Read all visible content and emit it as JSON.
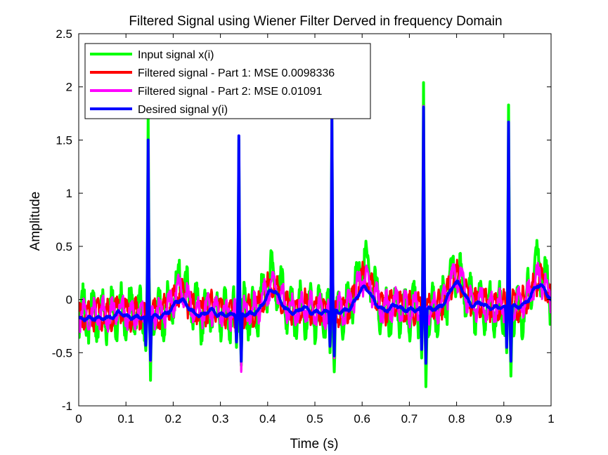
{
  "chart_data": {
    "type": "line",
    "title": "Filtered Signal using Wiener Filter Derved in frequency Domain",
    "xlabel": "Time (s)",
    "ylabel": "Amplitude",
    "xlim": [
      0,
      1
    ],
    "ylim": [
      -1,
      2.5
    ],
    "xticks": [
      "0",
      "0.1",
      "0.2",
      "0.3",
      "0.4",
      "0.5",
      "0.6",
      "0.7",
      "0.8",
      "0.9",
      "1"
    ],
    "yticks": [
      "-1",
      "-0.5",
      "0",
      "0.5",
      "1",
      "1.5",
      "2",
      "2.5"
    ],
    "grid": false,
    "legend_position": "top-left",
    "series": [
      {
        "name": "Input signal x(i)",
        "color": "#00ff00",
        "amplitude": 0.26,
        "r_peaks": [
          [
            0.147,
            1.72
          ],
          [
            0.339,
            1.5
          ],
          [
            0.536,
            1.75
          ],
          [
            0.73,
            2.04
          ],
          [
            0.91,
            1.83
          ]
        ],
        "q_dips": [
          [
            0.142,
            -0.48
          ],
          [
            0.334,
            -0.45
          ],
          [
            0.532,
            -0.5
          ],
          [
            0.726,
            -0.55
          ],
          [
            0.906,
            -0.5
          ]
        ],
        "s_dips": [
          [
            0.152,
            -0.76
          ],
          [
            0.344,
            -0.62
          ],
          [
            0.541,
            -0.68
          ],
          [
            0.735,
            -0.82
          ],
          [
            0.915,
            -0.72
          ]
        ],
        "t_waves": [
          [
            0.215,
            0.32
          ],
          [
            0.41,
            0.38
          ],
          [
            0.605,
            0.5
          ],
          [
            0.8,
            0.38
          ],
          [
            0.975,
            0.4
          ]
        ],
        "start": -0.15,
        "end": -0.1
      },
      {
        "name": "Filtered signal - Part 1: MSE 0.0098336",
        "color": "#ff0000",
        "amplitude": 0.15,
        "r_peaks": [
          [
            0.147,
            1.5
          ],
          [
            0.339,
            1.52
          ],
          [
            0.536,
            1.72
          ],
          [
            0.73,
            1.82
          ],
          [
            0.91,
            1.66
          ]
        ],
        "q_dips": [
          [
            0.142,
            -0.42
          ],
          [
            0.334,
            -0.4
          ],
          [
            0.532,
            -0.42
          ],
          [
            0.726,
            -0.45
          ],
          [
            0.906,
            -0.42
          ]
        ],
        "s_dips": [
          [
            0.152,
            -0.58
          ],
          [
            0.344,
            -0.67
          ],
          [
            0.541,
            -0.55
          ],
          [
            0.735,
            -0.6
          ],
          [
            0.915,
            -0.58
          ]
        ],
        "t_waves": [
          [
            0.215,
            0.2
          ],
          [
            0.41,
            0.25
          ],
          [
            0.605,
            0.3
          ],
          [
            0.8,
            0.28
          ],
          [
            0.975,
            0.25
          ]
        ],
        "start": -0.15,
        "end": -0.05
      },
      {
        "name": "Filtered signal - Part 2: MSE 0.01091",
        "color": "#ff00ff",
        "amplitude": 0.16,
        "r_peaks": [
          [
            0.147,
            1.5
          ],
          [
            0.339,
            1.52
          ],
          [
            0.536,
            1.72
          ],
          [
            0.73,
            1.82
          ],
          [
            0.91,
            1.66
          ]
        ],
        "q_dips": [
          [
            0.142,
            -0.42
          ],
          [
            0.334,
            -0.4
          ],
          [
            0.532,
            -0.42
          ],
          [
            0.726,
            -0.45
          ],
          [
            0.906,
            -0.42
          ]
        ],
        "s_dips": [
          [
            0.152,
            -0.58
          ],
          [
            0.344,
            -0.68
          ],
          [
            0.541,
            -0.55
          ],
          [
            0.735,
            -0.6
          ],
          [
            0.915,
            -0.58
          ]
        ],
        "t_waves": [
          [
            0.215,
            0.22
          ],
          [
            0.41,
            0.26
          ],
          [
            0.605,
            0.3
          ],
          [
            0.8,
            0.3
          ],
          [
            0.975,
            0.25
          ]
        ],
        "start": -0.15,
        "end": -0.05
      },
      {
        "name": "Desired signal y(i)",
        "color": "#0000ff",
        "amplitude": 0.02,
        "r_peaks": [
          [
            0.147,
            1.5
          ],
          [
            0.339,
            1.54
          ],
          [
            0.536,
            1.72
          ],
          [
            0.73,
            1.81
          ],
          [
            0.91,
            1.67
          ]
        ],
        "q_dips": [
          [
            0.142,
            -0.43
          ],
          [
            0.334,
            -0.4
          ],
          [
            0.532,
            -0.44
          ],
          [
            0.726,
            -0.47
          ],
          [
            0.906,
            -0.45
          ]
        ],
        "s_dips": [
          [
            0.152,
            -0.57
          ],
          [
            0.344,
            -0.58
          ],
          [
            0.541,
            -0.53
          ],
          [
            0.735,
            -0.6
          ],
          [
            0.915,
            -0.58
          ]
        ],
        "t_waves": [
          [
            0.215,
            0.15
          ],
          [
            0.41,
            0.22
          ],
          [
            0.605,
            0.22
          ],
          [
            0.8,
            0.24
          ],
          [
            0.975,
            0.2
          ]
        ],
        "start": -0.18,
        "end": -0.06
      }
    ]
  }
}
